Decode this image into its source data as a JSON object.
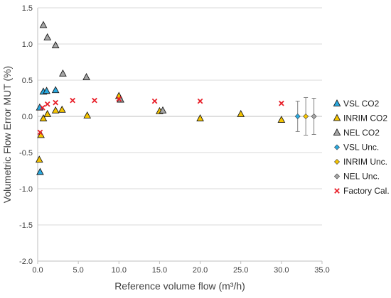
{
  "chart_data": {
    "type": "scatter",
    "xlabel": "Reference volume flow (m³/h)",
    "ylabel": "Volumetric Flow Error MUT (%)",
    "xlim": [
      0,
      35
    ],
    "ylim": [
      -2,
      1.5
    ],
    "xticks": [
      "0.0",
      "5.0",
      "10.0",
      "15.0",
      "20.0",
      "25.0",
      "30.0",
      "35.0"
    ],
    "xtick_values": [
      0,
      5,
      10,
      15,
      20,
      25,
      30,
      35
    ],
    "yticks": [
      "-2.0",
      "-1.5",
      "-1.0",
      "-0.5",
      "0.0",
      "0.5",
      "1.0",
      "1.5"
    ],
    "ytick_values": [
      -2,
      -1.5,
      -1,
      -0.5,
      0,
      0.5,
      1,
      1.5
    ],
    "grid": "horizontal",
    "legend_position": "right",
    "series": [
      {
        "name": "VSL CO2",
        "marker": "triangle",
        "color": "#29a9e0",
        "points": [
          [
            0.25,
            0.12
          ],
          [
            0.3,
            -0.77
          ],
          [
            0.7,
            0.34
          ],
          [
            1.1,
            0.35
          ],
          [
            2.2,
            0.36
          ]
        ]
      },
      {
        "name": "INRIM CO2",
        "marker": "triangle",
        "color": "#f5c400",
        "points": [
          [
            0.2,
            -0.6
          ],
          [
            0.4,
            -0.26
          ],
          [
            0.7,
            -0.03
          ],
          [
            1.2,
            0.03
          ],
          [
            2.2,
            0.08
          ],
          [
            3.0,
            0.09
          ],
          [
            6.1,
            0.01
          ],
          [
            10.0,
            0.28
          ],
          [
            15.0,
            0.07
          ],
          [
            20.0,
            -0.03
          ],
          [
            25.0,
            0.03
          ],
          [
            30.0,
            -0.05
          ]
        ]
      },
      {
        "name": "NEL CO2",
        "marker": "triangle",
        "color": "#a6a6a6",
        "points": [
          [
            0.7,
            1.26
          ],
          [
            1.2,
            1.09
          ],
          [
            2.2,
            0.98
          ],
          [
            3.1,
            0.59
          ],
          [
            6.0,
            0.54
          ],
          [
            10.2,
            0.23
          ],
          [
            15.4,
            0.08
          ]
        ]
      },
      {
        "name": "VSL Unc.",
        "marker": "diamond",
        "color": "#29a9e0",
        "points": [
          [
            32.0,
            0.0,
            0.21
          ]
        ]
      },
      {
        "name": "INRIM Unc.",
        "marker": "diamond",
        "color": "#f5c400",
        "points": [
          [
            33.0,
            0.0,
            0.26
          ]
        ]
      },
      {
        "name": "NEL Unc.",
        "marker": "diamond",
        "color": "#a6a6a6",
        "points": [
          [
            34.0,
            0.0,
            0.25
          ]
        ]
      },
      {
        "name": "Factory Cal.",
        "marker": "x",
        "color": "#e8202a",
        "points": [
          [
            0.3,
            -0.22
          ],
          [
            0.6,
            0.12
          ],
          [
            1.2,
            0.17
          ],
          [
            2.2,
            0.19
          ],
          [
            4.3,
            0.22
          ],
          [
            7.0,
            0.22
          ],
          [
            10.0,
            0.24
          ],
          [
            14.4,
            0.21
          ],
          [
            20.0,
            0.21
          ],
          [
            30.0,
            0.18
          ]
        ]
      }
    ]
  }
}
